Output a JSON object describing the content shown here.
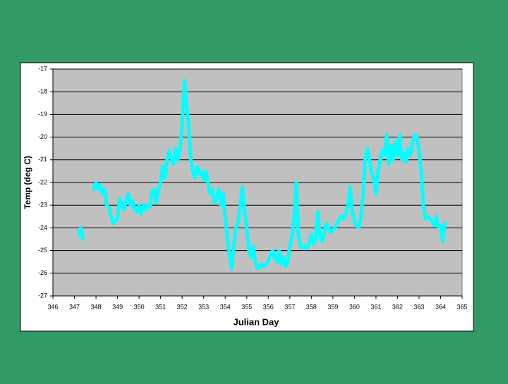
{
  "chart_data": {
    "type": "line",
    "x_label": "Julian Day",
    "y_label": "Temp (deg C)",
    "xlim": [
      346,
      365
    ],
    "xticks": [
      346,
      347,
      348,
      349,
      350,
      351,
      352,
      353,
      354,
      355,
      356,
      357,
      358,
      359,
      360,
      361,
      362,
      363,
      364,
      365
    ],
    "ylim": [
      -27,
      -17
    ],
    "yticks": [
      -17,
      -18,
      -19,
      -20,
      -21,
      -22,
      -23,
      -24,
      -25,
      -26,
      -27
    ],
    "grid": true,
    "series": [
      {
        "color": "#00ffff",
        "x": [
          347.2,
          347.3,
          347.4,
          347.6,
          347.9,
          348.0,
          348.1,
          348.2,
          348.3,
          348.4,
          348.5,
          348.6,
          348.7,
          348.8,
          348.9,
          349.0,
          349.1,
          349.2,
          349.3,
          349.4,
          349.5,
          349.6,
          349.7,
          349.8,
          349.9,
          350.0,
          350.1,
          350.2,
          350.3,
          350.4,
          350.5,
          350.6,
          350.7,
          350.8,
          350.9,
          351.0,
          351.1,
          351.2,
          351.3,
          351.4,
          351.5,
          351.6,
          351.7,
          351.8,
          351.9,
          352.0,
          352.1,
          352.2,
          352.3,
          352.4,
          352.5,
          352.6,
          352.7,
          352.8,
          352.9,
          353.0,
          353.1,
          353.2,
          353.3,
          353.4,
          353.5,
          353.6,
          353.7,
          353.8,
          353.9,
          354.0,
          354.1,
          354.2,
          354.3,
          354.4,
          354.5,
          354.6,
          354.7,
          354.8,
          354.9,
          355.0,
          355.1,
          355.2,
          355.3,
          355.4,
          355.5,
          355.6,
          355.7,
          355.8,
          355.9,
          356.0,
          356.1,
          356.2,
          356.3,
          356.4,
          356.5,
          356.6,
          356.7,
          356.8,
          356.9,
          357.0,
          357.1,
          357.2,
          357.3,
          357.4,
          357.5,
          357.6,
          357.7,
          357.8,
          357.9,
          358.0,
          358.1,
          358.2,
          358.3,
          358.4,
          358.5,
          358.6,
          358.7,
          358.8,
          358.9,
          359.0,
          359.1,
          359.2,
          359.3,
          359.4,
          359.5,
          359.6,
          359.7,
          359.8,
          359.9,
          360.0,
          360.1,
          360.2,
          360.3,
          360.4,
          360.5,
          360.6,
          360.7,
          360.8,
          360.9,
          361.0,
          361.1,
          361.2,
          361.3,
          361.4,
          361.5,
          361.6,
          361.7,
          361.8,
          361.9,
          362.0,
          362.1,
          362.2,
          362.3,
          362.4,
          362.5,
          362.6,
          362.7,
          362.8,
          362.9,
          363.0,
          363.1,
          363.2,
          363.3,
          363.4,
          363.5,
          363.6,
          363.7,
          363.8,
          363.9,
          364.0,
          364.1,
          364.2
        ],
        "values": [
          -24.3,
          -24.0,
          -24.5,
          null,
          -22.3,
          -22.0,
          -22.3,
          -22.1,
          -22.5,
          -22.3,
          -23.0,
          -23.1,
          -23.5,
          -23.8,
          -23.7,
          -23.6,
          -22.7,
          -23.0,
          -23.2,
          -22.8,
          -22.5,
          -23.0,
          -22.8,
          -23.2,
          -23.3,
          -23.0,
          -23.4,
          -23.0,
          -23.2,
          -23.0,
          -23.1,
          -22.4,
          -22.3,
          -22.9,
          -22.3,
          -22.0,
          -21.3,
          -21.8,
          -21.0,
          -20.6,
          -20.9,
          -21.2,
          -20.5,
          -21.0,
          -20.5,
          -19.5,
          -17.5,
          -18.5,
          -19.5,
          -21.0,
          -21.5,
          -21.8,
          -21.3,
          -21.6,
          -21.5,
          -21.9,
          -21.5,
          -22.0,
          -22.5,
          -22.3,
          -22.9,
          -22.6,
          -22.3,
          -23.0,
          -22.5,
          -23.5,
          -24.5,
          -25.2,
          -25.8,
          -24.8,
          -24.0,
          -23.8,
          -23.0,
          -22.2,
          -23.2,
          -24.0,
          -25.0,
          -25.3,
          -24.8,
          -25.5,
          -25.8,
          -25.7,
          -25.6,
          -25.7,
          -25.6,
          -25.5,
          -25.2,
          -25.0,
          -25.3,
          -25.5,
          -25.0,
          -25.6,
          -25.3,
          -25.7,
          -25.5,
          -24.8,
          -24.4,
          -23.6,
          -22.0,
          -24.3,
          -24.8,
          -24.9,
          -24.8,
          -24.9,
          -24.7,
          -24.3,
          -24.7,
          -24.5,
          -23.3,
          -24.4,
          -24.6,
          -24.2,
          -23.8,
          -24.0,
          -24.2,
          -24.1,
          -24.0,
          -23.8,
          -23.6,
          -23.5,
          -23.6,
          -23.4,
          -23.0,
          -22.2,
          -23.3,
          -23.7,
          -23.9,
          -24.0,
          -23.5,
          -22.5,
          -21.0,
          -20.5,
          -21.0,
          -21.6,
          -21.8,
          -22.5,
          -21.5,
          -21.0,
          -20.6,
          -20.8,
          -19.9,
          -21.2,
          -20.4,
          -21.0,
          -20.2,
          -20.8,
          -19.9,
          -21.0,
          -20.7,
          -21.1,
          -20.5,
          -20.8,
          -20.2,
          -19.9,
          -20.0,
          -20.6,
          -21.5,
          -23.0,
          -23.6,
          -23.5,
          -23.6,
          -23.7,
          -23.9,
          -23.5,
          -24.0,
          -23.9,
          -24.6,
          -23.8
        ]
      }
    ]
  }
}
